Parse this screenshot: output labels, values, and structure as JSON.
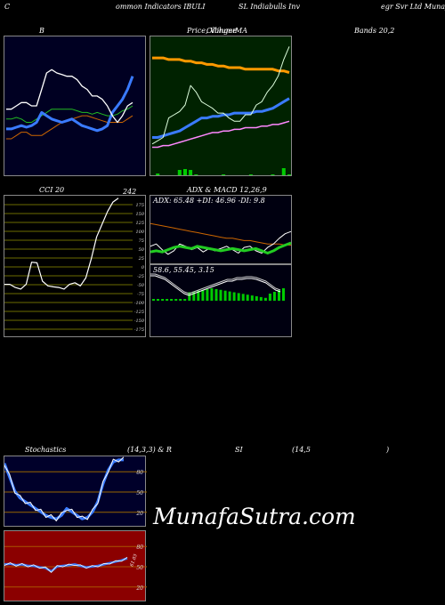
{
  "header": {
    "seg1": "C",
    "seg2": "ommon  Indicators IBULI",
    "seg3": "SL Indiabulls Inv",
    "seg4": "egr Svr Ltd Munafa"
  },
  "panels": {
    "bollinger": {
      "label": "B",
      "bands_label": "Bands 20,2"
    },
    "price": {
      "label_a": "Price, Volume",
      "label_b": "Ollinger",
      "label_c": "MA"
    },
    "cci": {
      "label": "CCI 20",
      "value": "242"
    },
    "adx": {
      "title": "ADX  & MACD 12,26,9",
      "readout": "ADX: 65.48  +DI: 46.96  -DI: 9.8"
    },
    "macd": {
      "readout": "58.6,  55.45,  3.15"
    },
    "stoch": {
      "label": "Stochastics",
      "params": "(14,3,3) & R"
    },
    "rsi": {
      "label": "SI",
      "params": "(14,5",
      "close": ")",
      "value": "61.03"
    }
  },
  "watermark": "MunafaSutra.com",
  "colors": {
    "bollinger_bg": "#000022",
    "price_bg": "#002200",
    "stoch_bg": "#00002a",
    "rsi_bg": "#8b0000",
    "blue_line": "#3a7bff",
    "green_line": "#22cc22",
    "orange_line": "#cc6600",
    "volume": "#00cc00"
  },
  "chart_data": [
    {
      "type": "line",
      "name": "bollinger-bands",
      "series": [
        {
          "values": [
            46,
            46,
            47,
            48,
            47,
            48,
            50,
            56,
            54,
            52,
            51,
            50,
            51,
            52,
            50,
            48,
            47,
            46,
            45,
            46,
            48,
            56,
            60,
            64,
            70,
            78
          ]
        },
        {
          "values": [
            52,
            52,
            53,
            52,
            50,
            50,
            52,
            54,
            56,
            58,
            58,
            58,
            58,
            58,
            57,
            56,
            56,
            55,
            56,
            55,
            54,
            54,
            55,
            57,
            58,
            60
          ]
        },
        {
          "values": [
            58,
            58,
            60,
            62,
            62,
            60,
            60,
            70,
            80,
            82,
            80,
            79,
            78,
            78,
            76,
            72,
            70,
            66,
            66,
            64,
            60,
            54,
            50,
            54,
            60,
            62
          ]
        },
        {
          "values": [
            40,
            40,
            42,
            44,
            44,
            42,
            42,
            42,
            44,
            46,
            48,
            50,
            51,
            52,
            53,
            54,
            54,
            53,
            52,
            51,
            50,
            50,
            50,
            50,
            52,
            54
          ]
        }
      ]
    },
    {
      "type": "line",
      "name": "price-volume-ma",
      "series": [
        {
          "values": [
            89,
            89,
            89,
            88,
            88,
            88,
            87,
            87,
            86,
            86,
            85,
            85,
            84,
            84,
            83,
            83,
            83,
            82,
            82,
            82,
            82,
            82,
            82,
            81,
            81,
            80
          ]
        },
        {
          "values": [
            36,
            38,
            40,
            52,
            54,
            56,
            60,
            72,
            68,
            62,
            60,
            58,
            55,
            55,
            52,
            50,
            50,
            54,
            54,
            60,
            62,
            68,
            72,
            78,
            88,
            96
          ]
        },
        {
          "values": [
            40,
            40,
            41,
            42,
            43,
            44,
            46,
            48,
            50,
            52,
            52,
            53,
            53,
            54,
            54,
            55,
            55,
            55,
            55,
            56,
            56,
            57,
            58,
            60,
            62,
            64
          ]
        },
        {
          "values": [
            34,
            34,
            35,
            35,
            36,
            37,
            38,
            39,
            40,
            41,
            42,
            43,
            43,
            44,
            44,
            45,
            45,
            46,
            46,
            46,
            47,
            47,
            48,
            48,
            49,
            50
          ]
        }
      ],
      "volume": [
        0,
        2,
        0,
        0,
        0,
        6,
        7,
        6,
        1,
        0,
        0,
        0,
        0,
        1,
        0,
        0,
        0,
        0,
        1,
        0,
        0,
        0,
        1,
        0,
        8,
        1
      ]
    },
    {
      "type": "line",
      "name": "cci",
      "yticks": [
        175,
        150,
        125,
        100,
        75,
        50,
        25,
        0,
        -25,
        -50,
        -75,
        -100,
        -125,
        -150,
        -175
      ],
      "values": [
        -30,
        -30,
        -40,
        -45,
        -30,
        40,
        38,
        -20,
        -35,
        -38,
        -40,
        -45,
        -30,
        -25,
        -35,
        -10,
        50,
        120,
        160,
        200,
        230,
        242
      ]
    },
    {
      "type": "line",
      "name": "adx-macd",
      "adx_readout": {
        "adx": 65.48,
        "plus_di": 46.96,
        "minus_di": 9.8
      },
      "macd_readout": {
        "macd": 58.6,
        "signal": 55.45,
        "hist": 3.15
      }
    },
    {
      "type": "line",
      "name": "stochastics",
      "yticks": [
        80,
        50,
        20
      ],
      "values": [
        90,
        70,
        50,
        40,
        35,
        30,
        25,
        20,
        15,
        12,
        10,
        15,
        25,
        20,
        15,
        10,
        12,
        20,
        35,
        60,
        80,
        92,
        95,
        95
      ]
    },
    {
      "type": "line",
      "name": "rsi",
      "yticks": [
        80,
        50,
        20
      ],
      "values": [
        52,
        53,
        51,
        52,
        50,
        50,
        48,
        47,
        42,
        49,
        50,
        51,
        52,
        50,
        48,
        49,
        50,
        52,
        54,
        56,
        58,
        61
      ]
    }
  ]
}
